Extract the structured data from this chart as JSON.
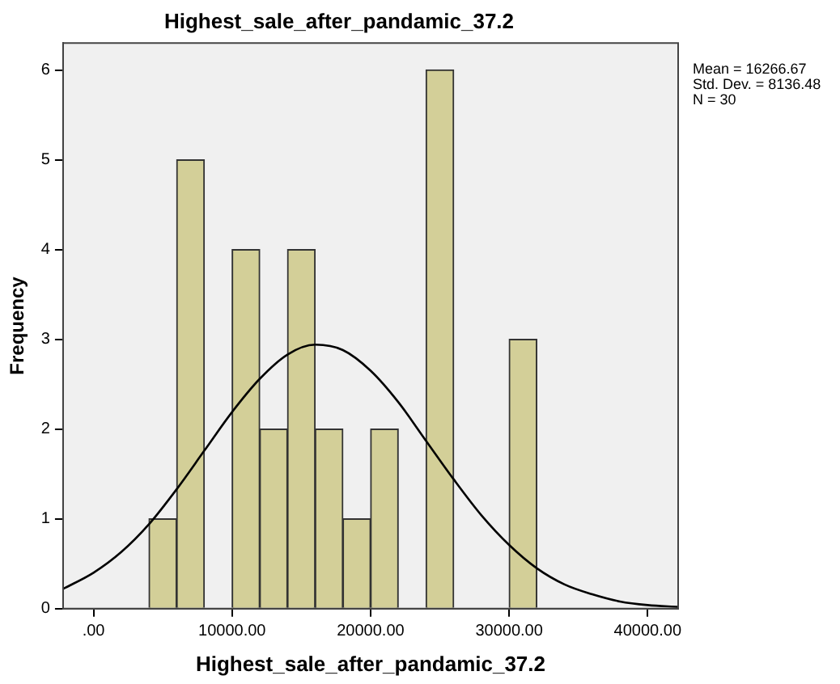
{
  "chart_data": {
    "type": "histogram",
    "title": "Highest_sale_after_pandamic_37.2",
    "xlabel": "Highest_sale_after_pandamic_37.2",
    "ylabel": "Frequency",
    "bins": [
      4000,
      6000,
      8000,
      10000,
      12000,
      14000,
      16000,
      18000,
      20000,
      22000,
      24000,
      26000,
      28000,
      30000,
      32000
    ],
    "values": [
      1,
      5,
      0,
      4,
      2,
      4,
      2,
      1,
      2,
      0,
      6,
      0,
      0,
      3
    ],
    "color": "#d3cf98",
    "series": [
      {
        "type": "line",
        "color": "#000000",
        "x": [
          -2200,
          0,
          2000,
          4000,
          6000,
          8000,
          10000,
          12000,
          14000,
          16000,
          18000,
          20000,
          22000,
          24000,
          26000,
          28000,
          30000,
          32000,
          34000,
          36000,
          38000,
          40000,
          42200
        ],
        "values": [
          0.22,
          0.4,
          0.63,
          0.94,
          1.33,
          1.76,
          2.19,
          2.56,
          2.83,
          2.94,
          2.88,
          2.65,
          2.3,
          1.87,
          1.44,
          1.04,
          0.71,
          0.45,
          0.27,
          0.16,
          0.08,
          0.04,
          0.02
        ]
      }
    ],
    "xlim": [
      -2200,
      42200
    ],
    "ylim": [
      0,
      6.3
    ],
    "xticks": [
      {
        "value": 0,
        "label": ".00"
      },
      {
        "value": 10000,
        "label": "10000.00"
      },
      {
        "value": 20000,
        "label": "20000.00"
      },
      {
        "value": 30000,
        "label": "30000.00"
      },
      {
        "value": 40000,
        "label": "40000.00"
      }
    ],
    "yticks": [
      0,
      1,
      2,
      3,
      4,
      5,
      6
    ],
    "annotations": [
      "Mean = 16266.67",
      "Std. Dev. = 8136.48",
      "N = 30"
    ],
    "grid": false,
    "legend": false,
    "marker": "none",
    "line_style": "solid"
  }
}
